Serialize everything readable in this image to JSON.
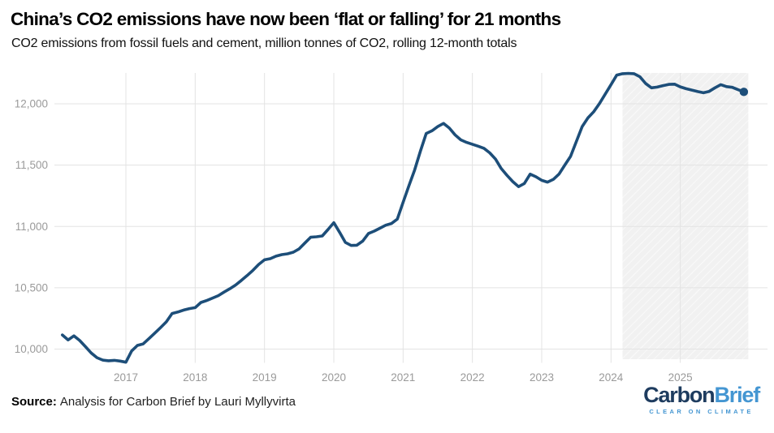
{
  "header": {
    "title": "China’s CO2 emissions have now been ‘flat or falling’ for 21 months",
    "subtitle": "CO2 emissions from fossil fuels and cement, million tonnes of CO2, rolling 12-month totals"
  },
  "chart_data": {
    "type": "line",
    "title": "China’s CO2 emissions have now been ‘flat or falling’ for 21 months",
    "subtitle": "CO2 emissions from fossil fuels and cement, million tonnes of CO2, rolling 12-month totals",
    "ylabel": "million tonnes of CO2, rolling 12-month totals",
    "frequency": "monthly",
    "start": {
      "year": 2016,
      "month": 2
    },
    "end": {
      "year": 2025,
      "month": 12
    },
    "values": [
      10115,
      10075,
      10108,
      10070,
      10020,
      9968,
      9930,
      9910,
      9905,
      9908,
      9902,
      9893,
      9985,
      10030,
      10042,
      10085,
      10130,
      10175,
      10222,
      10290,
      10302,
      10318,
      10330,
      10338,
      10380,
      10396,
      10416,
      10436,
      10465,
      10492,
      10522,
      10560,
      10600,
      10642,
      10690,
      10728,
      10737,
      10758,
      10770,
      10777,
      10790,
      10817,
      10865,
      10912,
      10916,
      10922,
      10975,
      11031,
      10953,
      10870,
      10845,
      10847,
      10880,
      10943,
      10962,
      10986,
      11010,
      11024,
      11060,
      11196,
      11330,
      11460,
      11615,
      11758,
      11780,
      11814,
      11840,
      11802,
      11747,
      11706,
      11685,
      11670,
      11654,
      11637,
      11600,
      11549,
      11472,
      11416,
      11365,
      11324,
      11350,
      11427,
      11405,
      11376,
      11361,
      11383,
      11427,
      11500,
      11571,
      11692,
      11814,
      11885,
      11935,
      12002,
      12079,
      12156,
      12234,
      12245,
      12248,
      12245,
      12220,
      12165,
      12130,
      12136,
      12148,
      12158,
      12160,
      12138,
      12123,
      12112,
      12100,
      12090,
      12101,
      12130,
      12156,
      12140,
      12134,
      12115,
      12097
    ],
    "x_ticks": [
      2017,
      2018,
      2019,
      2020,
      2021,
      2022,
      2023,
      2024,
      2025
    ],
    "y_ticks": [
      10000,
      10500,
      11000,
      11500,
      12000
    ],
    "ylim": [
      9890,
      12255
    ],
    "grid": true,
    "legend": "none",
    "line_color": "#1d4e79",
    "end_dot": true,
    "shaded_region": {
      "from": "2024-03",
      "to": "2025-12",
      "color": "#f1f1f1"
    }
  },
  "footer": {
    "source_label": "Source:",
    "source_text": "Analysis for Carbon Brief by Lauri Myllyvirta",
    "logo_part1": "Carbon",
    "logo_part2": "Brief",
    "logo_tagline": "CLEAR ON CLIMATE"
  },
  "colors": {
    "line": "#1d4e79",
    "shade": "#f1f1f1",
    "grid": "#e3e3e3",
    "tick_text": "#9a9a9a",
    "logo_dark": "#1e3c5f",
    "logo_light": "#4496d2"
  }
}
